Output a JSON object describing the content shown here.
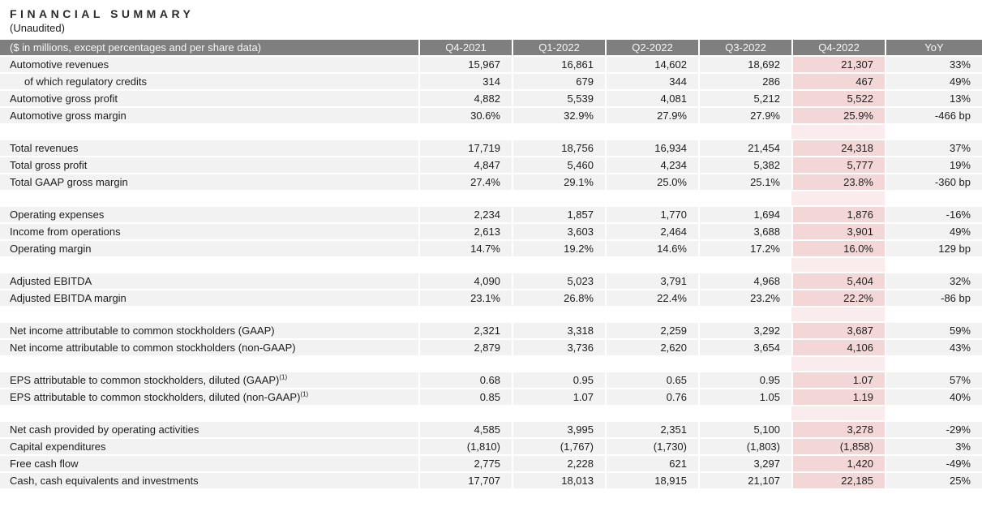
{
  "title": "FINANCIAL SUMMARY",
  "subtitle": "(Unaudited)",
  "colors": {
    "header_bg": "#7f7f7f",
    "row_bg": "#f2f2f2",
    "highlight_bg": "#f3d7d7",
    "highlight_gap_bg": "#faecec",
    "header_text": "#f7f7f7",
    "body_text": "#1c1c1c"
  },
  "table": {
    "label_header": "($ in millions, except percentages and per share data)",
    "columns": [
      "Q4-2021",
      "Q1-2022",
      "Q2-2022",
      "Q3-2022",
      "Q4-2022",
      "YoY"
    ],
    "highlight_column": "Q4-2022",
    "rows": [
      {
        "label": "Automotive revenues",
        "values": [
          "15,967",
          "16,861",
          "14,602",
          "18,692",
          "21,307",
          "33%"
        ]
      },
      {
        "label": "of which regulatory credits",
        "indent": true,
        "values": [
          "314",
          "679",
          "344",
          "286",
          "467",
          "49%"
        ]
      },
      {
        "label": "Automotive gross profit",
        "values": [
          "4,882",
          "5,539",
          "4,081",
          "5,212",
          "5,522",
          "13%"
        ]
      },
      {
        "label": "Automotive gross margin",
        "values": [
          "30.6%",
          "32.9%",
          "27.9%",
          "27.9%",
          "25.9%",
          "-466 bp"
        ]
      },
      {
        "gap": true
      },
      {
        "label": "Total revenues",
        "values": [
          "17,719",
          "18,756",
          "16,934",
          "21,454",
          "24,318",
          "37%"
        ]
      },
      {
        "label": "Total gross profit",
        "values": [
          "4,847",
          "5,460",
          "4,234",
          "5,382",
          "5,777",
          "19%"
        ]
      },
      {
        "label": "Total GAAP gross margin",
        "values": [
          "27.4%",
          "29.1%",
          "25.0%",
          "25.1%",
          "23.8%",
          "-360 bp"
        ]
      },
      {
        "gap": true
      },
      {
        "label": "Operating expenses",
        "values": [
          "2,234",
          "1,857",
          "1,770",
          "1,694",
          "1,876",
          "-16%"
        ]
      },
      {
        "label": "Income from operations",
        "values": [
          "2,613",
          "3,603",
          "2,464",
          "3,688",
          "3,901",
          "49%"
        ]
      },
      {
        "label": "Operating margin",
        "values": [
          "14.7%",
          "19.2%",
          "14.6%",
          "17.2%",
          "16.0%",
          "129 bp"
        ]
      },
      {
        "gap": true
      },
      {
        "label": "Adjusted EBITDA",
        "values": [
          "4,090",
          "5,023",
          "3,791",
          "4,968",
          "5,404",
          "32%"
        ]
      },
      {
        "label": "Adjusted EBITDA margin",
        "values": [
          "23.1%",
          "26.8%",
          "22.4%",
          "23.2%",
          "22.2%",
          "-86 bp"
        ]
      },
      {
        "gap": true
      },
      {
        "label": "Net income attributable to common stockholders (GAAP)",
        "values": [
          "2,321",
          "3,318",
          "2,259",
          "3,292",
          "3,687",
          "59%"
        ]
      },
      {
        "label": "Net income attributable to common stockholders (non-GAAP)",
        "values": [
          "2,879",
          "3,736",
          "2,620",
          "3,654",
          "4,106",
          "43%"
        ]
      },
      {
        "gap": true
      },
      {
        "label": "EPS attributable to common stockholders, diluted (GAAP)",
        "sup": "(1)",
        "values": [
          "0.68",
          "0.95",
          "0.65",
          "0.95",
          "1.07",
          "57%"
        ]
      },
      {
        "label": "EPS attributable to common stockholders, diluted (non-GAAP)",
        "sup": "(1)",
        "values": [
          "0.85",
          "1.07",
          "0.76",
          "1.05",
          "1.19",
          "40%"
        ]
      },
      {
        "gap": true
      },
      {
        "label": "Net cash provided by operating activities",
        "values": [
          "4,585",
          "3,995",
          "2,351",
          "5,100",
          "3,278",
          "-29%"
        ]
      },
      {
        "label": "Capital expenditures",
        "values": [
          "(1,810)",
          "(1,767)",
          "(1,730)",
          "(1,803)",
          "(1,858)",
          "3%"
        ]
      },
      {
        "label": "Free cash flow",
        "values": [
          "2,775",
          "2,228",
          "621",
          "3,297",
          "1,420",
          "-49%"
        ]
      },
      {
        "label": "Cash, cash equivalents and investments",
        "values": [
          "17,707",
          "18,013",
          "18,915",
          "21,107",
          "22,185",
          "25%"
        ]
      }
    ]
  }
}
